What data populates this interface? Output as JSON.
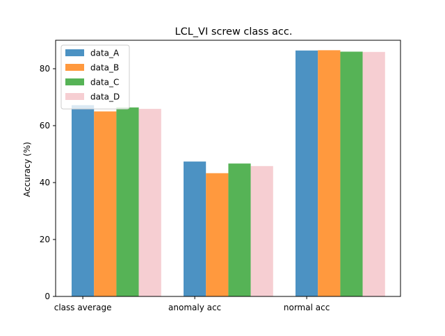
{
  "chart_data": {
    "type": "bar",
    "title": "LCL_VI screw class acc.",
    "xlabel": "",
    "ylabel": "Accuracy (%)",
    "categories": [
      "class average",
      "anomaly acc",
      "normal acc"
    ],
    "ylim": [
      0,
      90
    ],
    "yticks": [
      0,
      20,
      40,
      60,
      80
    ],
    "grid": false,
    "legend_position": "top-left",
    "series": [
      {
        "name": "data_A",
        "color": "#1f77b4",
        "values": [
          67.2,
          47.4,
          86.4
        ]
      },
      {
        "name": "data_B",
        "color": "#ff7f0e",
        "values": [
          65.0,
          43.3,
          86.5
        ]
      },
      {
        "name": "data_C",
        "color": "#2ca02c",
        "values": [
          66.4,
          46.7,
          86.0
        ]
      },
      {
        "name": "data_D",
        "color": "#f4c2c7",
        "values": [
          65.9,
          45.8,
          85.9
        ]
      }
    ],
    "bar_opacity": 0.8
  }
}
